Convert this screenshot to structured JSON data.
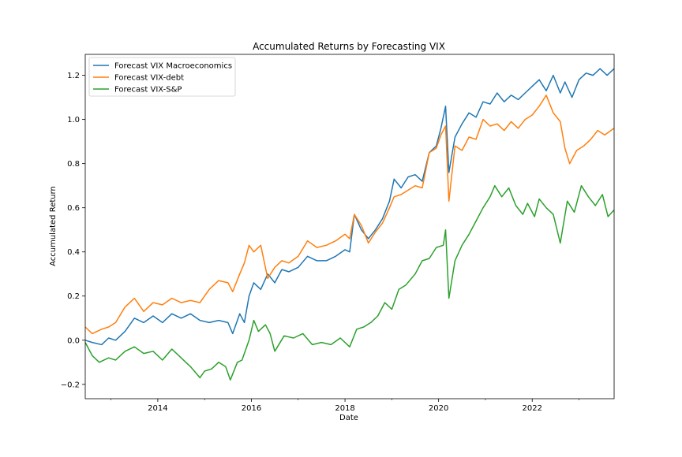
{
  "chart_data": {
    "type": "line",
    "title": "Accumulated Returns by Forecasting VIX",
    "xlabel": "Date",
    "ylabel": "Accumulated Return",
    "xlim": [
      2012.45,
      2023.75
    ],
    "ylim": [
      -0.265,
      1.295
    ],
    "x_ticks": [
      {
        "value": 2014,
        "label": "2014"
      },
      {
        "value": 2016,
        "label": "2016"
      },
      {
        "value": 2018,
        "label": "2018"
      },
      {
        "value": 2020,
        "label": "2020"
      },
      {
        "value": 2022,
        "label": "2022"
      }
    ],
    "x_minor_ticks": [
      2013,
      2015,
      2017,
      2019,
      2021,
      2023
    ],
    "y_ticks": [
      {
        "value": -0.2,
        "label": "−0.2"
      },
      {
        "value": 0.0,
        "label": "0.0"
      },
      {
        "value": 0.2,
        "label": "0.2"
      },
      {
        "value": 0.4,
        "label": "0.4"
      },
      {
        "value": 0.6,
        "label": "0.6"
      },
      {
        "value": 0.8,
        "label": "0.8"
      },
      {
        "value": 1.0,
        "label": "1.0"
      },
      {
        "value": 1.2,
        "label": "1.2"
      }
    ],
    "grid": false,
    "legend_position": "upper-left",
    "series": [
      {
        "name": "Forecast VIX Macroeconomics",
        "color": "#1f77b4",
        "points": [
          [
            2012.45,
            0.0
          ],
          [
            2012.6,
            -0.01
          ],
          [
            2012.8,
            -0.02
          ],
          [
            2012.95,
            0.01
          ],
          [
            2013.1,
            0.0
          ],
          [
            2013.3,
            0.04
          ],
          [
            2013.5,
            0.1
          ],
          [
            2013.7,
            0.08
          ],
          [
            2013.9,
            0.11
          ],
          [
            2014.1,
            0.08
          ],
          [
            2014.3,
            0.12
          ],
          [
            2014.5,
            0.1
          ],
          [
            2014.7,
            0.12
          ],
          [
            2014.9,
            0.09
          ],
          [
            2015.1,
            0.08
          ],
          [
            2015.3,
            0.09
          ],
          [
            2015.5,
            0.08
          ],
          [
            2015.6,
            0.03
          ],
          [
            2015.75,
            0.12
          ],
          [
            2015.85,
            0.08
          ],
          [
            2015.95,
            0.2
          ],
          [
            2016.05,
            0.26
          ],
          [
            2016.2,
            0.23
          ],
          [
            2016.35,
            0.3
          ],
          [
            2016.5,
            0.26
          ],
          [
            2016.65,
            0.32
          ],
          [
            2016.8,
            0.31
          ],
          [
            2017.0,
            0.33
          ],
          [
            2017.2,
            0.38
          ],
          [
            2017.4,
            0.36
          ],
          [
            2017.6,
            0.36
          ],
          [
            2017.8,
            0.38
          ],
          [
            2018.0,
            0.41
          ],
          [
            2018.1,
            0.4
          ],
          [
            2018.2,
            0.57
          ],
          [
            2018.35,
            0.5
          ],
          [
            2018.5,
            0.46
          ],
          [
            2018.65,
            0.5
          ],
          [
            2018.8,
            0.55
          ],
          [
            2018.95,
            0.63
          ],
          [
            2019.05,
            0.73
          ],
          [
            2019.2,
            0.69
          ],
          [
            2019.35,
            0.74
          ],
          [
            2019.5,
            0.75
          ],
          [
            2019.65,
            0.72
          ],
          [
            2019.8,
            0.85
          ],
          [
            2019.95,
            0.88
          ],
          [
            2020.05,
            0.96
          ],
          [
            2020.15,
            1.06
          ],
          [
            2020.22,
            0.76
          ],
          [
            2020.35,
            0.92
          ],
          [
            2020.5,
            0.98
          ],
          [
            2020.65,
            1.03
          ],
          [
            2020.8,
            1.01
          ],
          [
            2020.95,
            1.08
          ],
          [
            2021.1,
            1.07
          ],
          [
            2021.25,
            1.12
          ],
          [
            2021.4,
            1.08
          ],
          [
            2021.55,
            1.11
          ],
          [
            2021.7,
            1.09
          ],
          [
            2021.85,
            1.12
          ],
          [
            2022.0,
            1.15
          ],
          [
            2022.15,
            1.18
          ],
          [
            2022.3,
            1.13
          ],
          [
            2022.45,
            1.2
          ],
          [
            2022.6,
            1.12
          ],
          [
            2022.7,
            1.17
          ],
          [
            2022.85,
            1.1
          ],
          [
            2023.0,
            1.18
          ],
          [
            2023.15,
            1.21
          ],
          [
            2023.3,
            1.2
          ],
          [
            2023.45,
            1.23
          ],
          [
            2023.6,
            1.2
          ],
          [
            2023.75,
            1.23
          ]
        ]
      },
      {
        "name": "Forecast VIX-debt",
        "color": "#ff7f0e",
        "points": [
          [
            2012.45,
            0.06
          ],
          [
            2012.6,
            0.03
          ],
          [
            2012.8,
            0.05
          ],
          [
            2012.95,
            0.06
          ],
          [
            2013.1,
            0.08
          ],
          [
            2013.3,
            0.15
          ],
          [
            2013.5,
            0.19
          ],
          [
            2013.7,
            0.13
          ],
          [
            2013.9,
            0.17
          ],
          [
            2014.1,
            0.16
          ],
          [
            2014.3,
            0.19
          ],
          [
            2014.5,
            0.17
          ],
          [
            2014.7,
            0.18
          ],
          [
            2014.9,
            0.17
          ],
          [
            2015.1,
            0.23
          ],
          [
            2015.3,
            0.27
          ],
          [
            2015.5,
            0.26
          ],
          [
            2015.6,
            0.22
          ],
          [
            2015.75,
            0.3
          ],
          [
            2015.85,
            0.35
          ],
          [
            2015.95,
            0.43
          ],
          [
            2016.05,
            0.4
          ],
          [
            2016.2,
            0.43
          ],
          [
            2016.35,
            0.28
          ],
          [
            2016.5,
            0.33
          ],
          [
            2016.65,
            0.36
          ],
          [
            2016.8,
            0.35
          ],
          [
            2017.0,
            0.38
          ],
          [
            2017.2,
            0.45
          ],
          [
            2017.4,
            0.42
          ],
          [
            2017.6,
            0.43
          ],
          [
            2017.8,
            0.45
          ],
          [
            2018.0,
            0.48
          ],
          [
            2018.1,
            0.46
          ],
          [
            2018.2,
            0.57
          ],
          [
            2018.35,
            0.52
          ],
          [
            2018.5,
            0.44
          ],
          [
            2018.65,
            0.49
          ],
          [
            2018.8,
            0.53
          ],
          [
            2018.95,
            0.6
          ],
          [
            2019.05,
            0.65
          ],
          [
            2019.2,
            0.66
          ],
          [
            2019.35,
            0.68
          ],
          [
            2019.5,
            0.7
          ],
          [
            2019.65,
            0.69
          ],
          [
            2019.8,
            0.85
          ],
          [
            2019.95,
            0.87
          ],
          [
            2020.05,
            0.93
          ],
          [
            2020.15,
            0.97
          ],
          [
            2020.22,
            0.63
          ],
          [
            2020.35,
            0.88
          ],
          [
            2020.5,
            0.86
          ],
          [
            2020.65,
            0.92
          ],
          [
            2020.8,
            0.91
          ],
          [
            2020.95,
            1.0
          ],
          [
            2021.1,
            0.97
          ],
          [
            2021.25,
            0.98
          ],
          [
            2021.4,
            0.95
          ],
          [
            2021.55,
            0.99
          ],
          [
            2021.7,
            0.96
          ],
          [
            2021.85,
            1.0
          ],
          [
            2022.0,
            1.02
          ],
          [
            2022.15,
            1.06
          ],
          [
            2022.3,
            1.11
          ],
          [
            2022.45,
            1.03
          ],
          [
            2022.6,
            0.99
          ],
          [
            2022.7,
            0.87
          ],
          [
            2022.8,
            0.8
          ],
          [
            2022.95,
            0.86
          ],
          [
            2023.1,
            0.88
          ],
          [
            2023.25,
            0.91
          ],
          [
            2023.4,
            0.95
          ],
          [
            2023.55,
            0.93
          ],
          [
            2023.75,
            0.96
          ]
        ]
      },
      {
        "name": "Forecast VIX-S&P",
        "color": "#2ca02c",
        "points": [
          [
            2012.45,
            -0.01
          ],
          [
            2012.6,
            -0.07
          ],
          [
            2012.75,
            -0.1
          ],
          [
            2012.95,
            -0.08
          ],
          [
            2013.1,
            -0.09
          ],
          [
            2013.3,
            -0.05
          ],
          [
            2013.5,
            -0.03
          ],
          [
            2013.7,
            -0.06
          ],
          [
            2013.9,
            -0.05
          ],
          [
            2014.1,
            -0.09
          ],
          [
            2014.3,
            -0.04
          ],
          [
            2014.5,
            -0.08
          ],
          [
            2014.7,
            -0.12
          ],
          [
            2014.9,
            -0.17
          ],
          [
            2015.0,
            -0.14
          ],
          [
            2015.15,
            -0.13
          ],
          [
            2015.3,
            -0.1
          ],
          [
            2015.45,
            -0.12
          ],
          [
            2015.55,
            -0.18
          ],
          [
            2015.7,
            -0.1
          ],
          [
            2015.8,
            -0.09
          ],
          [
            2015.95,
            0.0
          ],
          [
            2016.05,
            0.09
          ],
          [
            2016.15,
            0.04
          ],
          [
            2016.3,
            0.07
          ],
          [
            2016.4,
            0.03
          ],
          [
            2016.5,
            -0.05
          ],
          [
            2016.7,
            0.02
          ],
          [
            2016.9,
            0.01
          ],
          [
            2017.1,
            0.03
          ],
          [
            2017.3,
            -0.02
          ],
          [
            2017.5,
            -0.01
          ],
          [
            2017.7,
            -0.02
          ],
          [
            2017.9,
            0.01
          ],
          [
            2018.1,
            -0.03
          ],
          [
            2018.25,
            0.05
          ],
          [
            2018.4,
            0.06
          ],
          [
            2018.55,
            0.08
          ],
          [
            2018.7,
            0.11
          ],
          [
            2018.85,
            0.17
          ],
          [
            2019.0,
            0.14
          ],
          [
            2019.15,
            0.23
          ],
          [
            2019.3,
            0.25
          ],
          [
            2019.5,
            0.3
          ],
          [
            2019.65,
            0.36
          ],
          [
            2019.8,
            0.37
          ],
          [
            2019.95,
            0.42
          ],
          [
            2020.1,
            0.43
          ],
          [
            2020.15,
            0.5
          ],
          [
            2020.22,
            0.19
          ],
          [
            2020.35,
            0.36
          ],
          [
            2020.5,
            0.43
          ],
          [
            2020.65,
            0.48
          ],
          [
            2020.8,
            0.54
          ],
          [
            2020.95,
            0.6
          ],
          [
            2021.1,
            0.65
          ],
          [
            2021.2,
            0.7
          ],
          [
            2021.35,
            0.65
          ],
          [
            2021.5,
            0.69
          ],
          [
            2021.65,
            0.61
          ],
          [
            2021.8,
            0.57
          ],
          [
            2021.9,
            0.62
          ],
          [
            2022.05,
            0.56
          ],
          [
            2022.15,
            0.64
          ],
          [
            2022.3,
            0.6
          ],
          [
            2022.45,
            0.57
          ],
          [
            2022.6,
            0.44
          ],
          [
            2022.75,
            0.63
          ],
          [
            2022.9,
            0.58
          ],
          [
            2023.05,
            0.7
          ],
          [
            2023.2,
            0.65
          ],
          [
            2023.35,
            0.61
          ],
          [
            2023.5,
            0.66
          ],
          [
            2023.62,
            0.56
          ],
          [
            2023.75,
            0.59
          ]
        ]
      }
    ]
  }
}
